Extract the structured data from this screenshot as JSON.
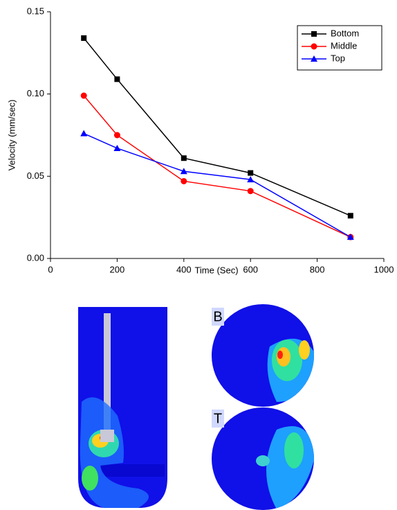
{
  "chart_data": {
    "type": "line",
    "x_label": "Time (Sec)",
    "y_label": "Velocity (mm/sec)",
    "x": [
      100,
      200,
      400,
      600,
      900
    ],
    "series": [
      {
        "name": "Bottom",
        "color": "#000000",
        "marker": "square",
        "values": [
          0.134,
          0.109,
          0.061,
          0.052,
          0.026
        ]
      },
      {
        "name": "Middle",
        "color": "#ff0000",
        "marker": "circle",
        "values": [
          0.099,
          0.075,
          0.047,
          0.041,
          0.013
        ]
      },
      {
        "name": "Top",
        "color": "#0000ff",
        "marker": "triangle",
        "values": [
          0.076,
          0.067,
          0.053,
          0.048,
          0.013
        ]
      }
    ],
    "xlim": [
      0,
      1000
    ],
    "xticks": [
      0,
      200,
      400,
      600,
      800,
      1000
    ],
    "ylim": [
      0,
      0.15
    ],
    "yticks": [
      {
        "value": 0,
        "label": "0.00"
      },
      0.05,
      {
        "value": 0.1,
        "label": "0.10"
      },
      0.15
    ],
    "legend": "upper right"
  },
  "images": {
    "labels": [
      "B",
      "T"
    ]
  }
}
